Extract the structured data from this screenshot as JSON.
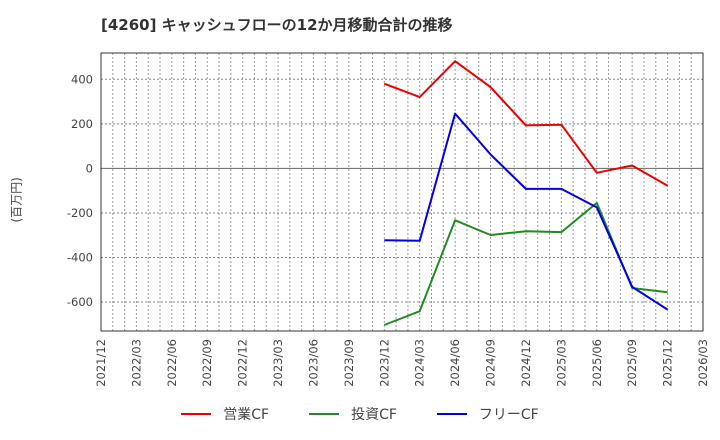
{
  "title": "[4260]  キャッシュフローの12か月移動合計の推移",
  "ylabel": "(百万円)",
  "legend": [
    {
      "label": "営業CF",
      "color": "#ee0000"
    },
    {
      "label": "投資CF",
      "color": "#228b22"
    },
    {
      "label": "フリーCF",
      "color": "#0000ee"
    }
  ],
  "chart_data": {
    "type": "line",
    "title": "[4260]  キャッシュフローの12か月移動合計の推移",
    "xlabel": "",
    "ylabel": "(百万円)",
    "categories": [
      "2021/12",
      "2022/03",
      "2022/06",
      "2022/09",
      "2022/12",
      "2023/03",
      "2023/06",
      "2023/09",
      "2023/12",
      "2024/03",
      "2024/06",
      "2024/09",
      "2024/12",
      "2025/03",
      "2025/06",
      "2025/09",
      "2025/12",
      "2026/03"
    ],
    "yticks": [
      400,
      200,
      0,
      -200,
      -400,
      -600
    ],
    "ylim": [
      -730,
      518
    ],
    "grid": true,
    "legend_position": "bottom",
    "series": [
      {
        "name": "営業CF",
        "color": "#ee0000",
        "x": [
          "2023/12",
          "2024/03",
          "2024/06",
          "2024/09",
          "2024/12",
          "2025/03",
          "2025/06",
          "2025/09",
          "2025/12"
        ],
        "values": [
          380,
          320,
          481,
          365,
          193,
          196,
          -20,
          13,
          -78
        ]
      },
      {
        "name": "投資CF",
        "color": "#228b22",
        "x": [
          "2023/12",
          "2024/03",
          "2024/06",
          "2024/09",
          "2024/12",
          "2025/03",
          "2025/06",
          "2025/09",
          "2025/12"
        ],
        "values": [
          -703,
          -641,
          -233,
          -299,
          -282,
          -286,
          -155,
          -537,
          -556
        ]
      },
      {
        "name": "フリーCF",
        "color": "#0000ee",
        "x": [
          "2023/12",
          "2024/03",
          "2024/06",
          "2024/09",
          "2024/12",
          "2025/03",
          "2025/06",
          "2025/09",
          "2025/12"
        ],
        "values": [
          -323,
          -325,
          246,
          63,
          -92,
          -92,
          -175,
          -532,
          -634
        ]
      }
    ]
  }
}
